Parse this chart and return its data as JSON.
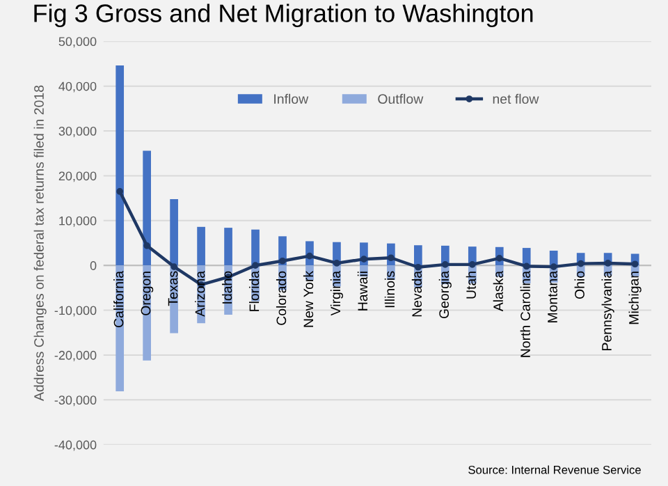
{
  "chart_data": {
    "type": "bar",
    "title": "Fig 3 Gross and Net Migration to Washington",
    "ylabel": "Address Changes on federal tax returns filed in 2018",
    "categories": [
      "California",
      "Oregon",
      "Texas",
      "Arizona",
      "Idaho",
      "Florida",
      "Colorado",
      "New York",
      "Virginia",
      "Hawaii",
      "Illinois",
      "Nevada",
      "Georgia",
      "Utah",
      "Alaska",
      "North Carolina",
      "Montana",
      "Ohio",
      "Pennsylvania",
      "Michigan"
    ],
    "series": [
      {
        "name": "Inflow",
        "color": "#4472c4",
        "values": [
          44600,
          25600,
          14800,
          8600,
          8400,
          8000,
          6500,
          5400,
          5200,
          5100,
          4900,
          4500,
          4400,
          4200,
          4100,
          3900,
          3300,
          2800,
          2800,
          2600
        ]
      },
      {
        "name": "Outflow",
        "color": "#8faadc",
        "values": [
          -28100,
          -21200,
          -15100,
          -12900,
          -11000,
          -8000,
          -5500,
          -3300,
          -4700,
          -2500,
          -3200,
          -4900,
          -4200,
          -4000,
          -2500,
          -4000,
          -3800,
          -2500,
          -2300,
          -2400
        ]
      },
      {
        "name": "net flow",
        "color": "#1f3864",
        "type": "line",
        "marker": "circle",
        "values": [
          16500,
          4400,
          -300,
          -4300,
          -2600,
          0,
          1000,
          2100,
          500,
          1400,
          1700,
          -400,
          200,
          200,
          1600,
          -200,
          -300,
          400,
          500,
          300
        ]
      }
    ],
    "ylim": [
      -40000,
      50000
    ],
    "yticks": [
      {
        "value": -40000,
        "label": "-40,000"
      },
      {
        "value": -30000,
        "label": "-30,000"
      },
      {
        "value": -20000,
        "label": "-20,000"
      },
      {
        "value": -10000,
        "label": "-10,000"
      },
      {
        "value": 0,
        "label": "0"
      },
      {
        "value": 10000,
        "label": "10,000"
      },
      {
        "value": 20000,
        "label": "20,000"
      },
      {
        "value": 30000,
        "label": "30,000"
      },
      {
        "value": 40000,
        "label": "40,000"
      },
      {
        "value": 50000,
        "label": "50,000"
      }
    ],
    "stacked": true,
    "grid": "y",
    "legend": "top",
    "annotations": [
      "Source: Internal Revenue Service"
    ]
  }
}
